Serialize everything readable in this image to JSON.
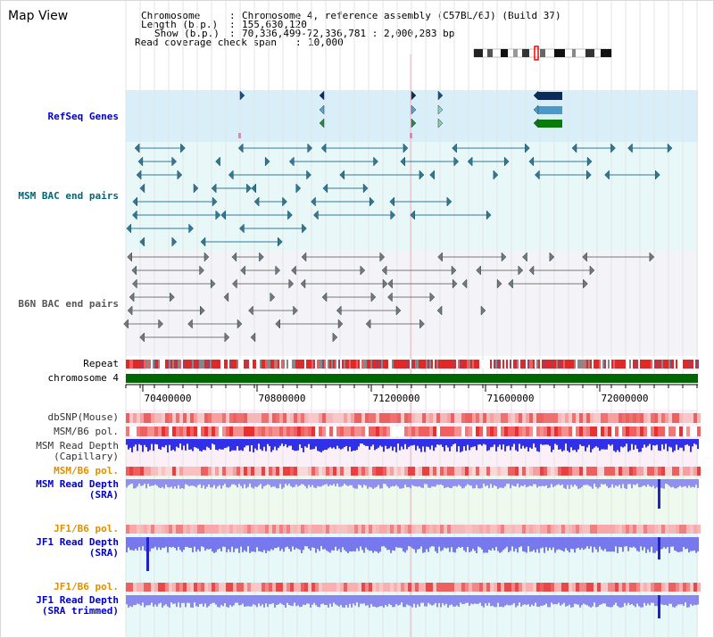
{
  "title": "Map View",
  "header": {
    "chromosome_label": "Chromosome",
    "chromosome_value": "Chromosome 4, reference assembly (C57BL/6J) (Build 37)",
    "length_label": "Length (b.p.)",
    "length_value": "155,630,120",
    "show_label": "Show (b.p.)",
    "show_value": "70,336,499-72,336,781 : 2,000,283 bp",
    "coverage_label": "Read coverage check span",
    "coverage_value": "10,000"
  },
  "tracks": {
    "refseq": "RefSeq Genes",
    "msm_bac": "MSM BAC end pairs",
    "b6n_bac": "B6N BAC end pairs",
    "repeat": "Repeat",
    "chromosome": "chromosome 4",
    "dbsnp": "dbSNP(Mouse)",
    "msm_b6_pol_1": "MSM/B6 pol.",
    "msm_read_depth_cap_1": "MSM Read Depth",
    "msm_read_depth_cap_2": "(Capillary)",
    "msm_b6_pol_2": "MSM/B6 pol.",
    "msm_read_depth_sra_1": "MSM Read Depth",
    "msm_read_depth_sra_2": "(SRA)",
    "jf1_b6_pol_1": "JF1/B6 pol.",
    "jf1_read_depth_sra_1": "JF1 Read Depth",
    "jf1_read_depth_sra_2": "(SRA)",
    "jf1_b6_pol_2": "JF1/B6 pol.",
    "jf1_read_depth_trim_1": "JF1 Read Depth",
    "jf1_read_depth_trim_2": "(SRA trimmed)"
  },
  "axis": {
    "ticks": [
      "70400000",
      "70800000",
      "71200000",
      "71600000",
      "72000000"
    ]
  },
  "colors": {
    "refseq_bg": "#d8eef8",
    "msm_bac_bg": "#e8f8f8",
    "b6n_bac_bg": "#f4f4f8",
    "msm_color": "#2e7a96",
    "b6n_color": "#777777",
    "chromosome_bar": "#006600",
    "depth_blue": "#3333ee",
    "label_blue": "#0000cc",
    "label_orange": "#e09000",
    "label_teal": "#006677",
    "label_gray": "#555555"
  }
}
